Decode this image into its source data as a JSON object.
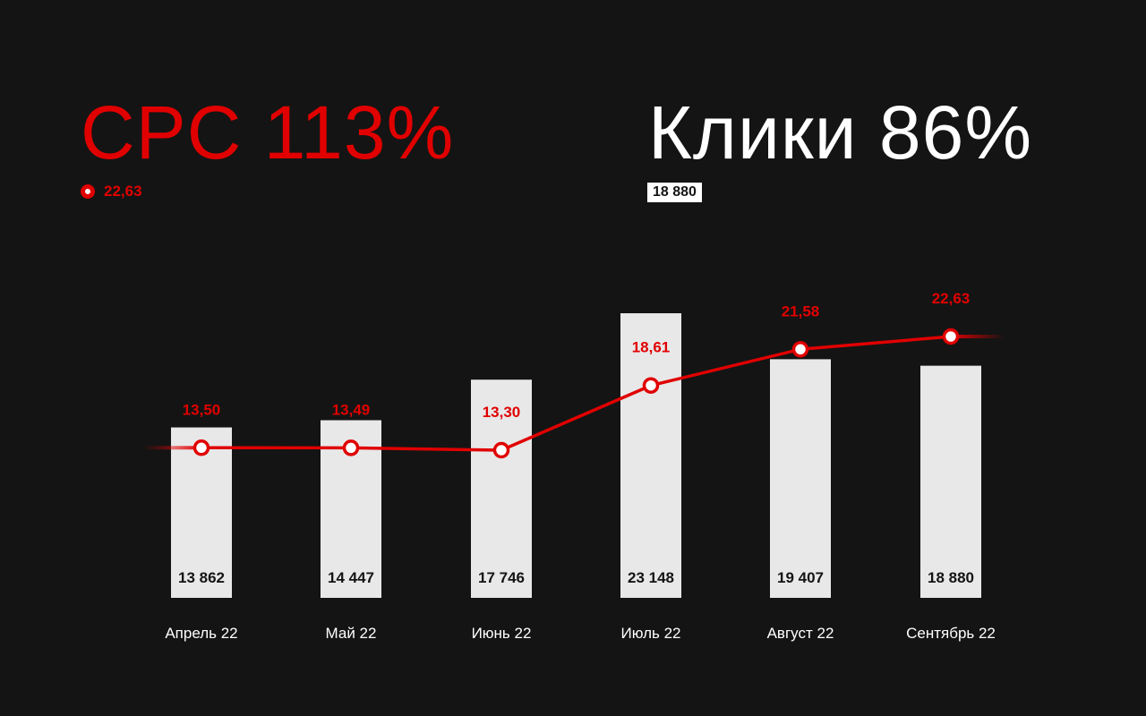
{
  "header": {
    "cpc_title": "CPC",
    "cpc_pct": "113%",
    "clicks_title": "Клики",
    "clicks_pct": "86%",
    "cpc_current": "22,63",
    "clicks_current": "18 880"
  },
  "colors": {
    "background": "#141414",
    "accent": "#e10000",
    "bar": "#e8e8e8",
    "text": "#ffffff"
  },
  "chart_data": {
    "type": "bar",
    "categories": [
      "Апрель 22",
      "Май 22",
      "Июнь 22",
      "Июль 22",
      "Август 22",
      "Сентябрь 22"
    ],
    "series": [
      {
        "name": "Клики",
        "type": "bar",
        "values": [
          13862,
          14447,
          17746,
          23148,
          19407,
          18880
        ],
        "labels": [
          "13 862",
          "14 447",
          "17 746",
          "23 148",
          "19 407",
          "18 880"
        ]
      },
      {
        "name": "CPC",
        "type": "line",
        "values": [
          13.5,
          13.49,
          13.3,
          18.61,
          21.58,
          22.63
        ],
        "labels": [
          "13,50",
          "13,49",
          "13,30",
          "18,61",
          "21,58",
          "22,63"
        ]
      }
    ],
    "grid": false,
    "axes_visible": false
  }
}
